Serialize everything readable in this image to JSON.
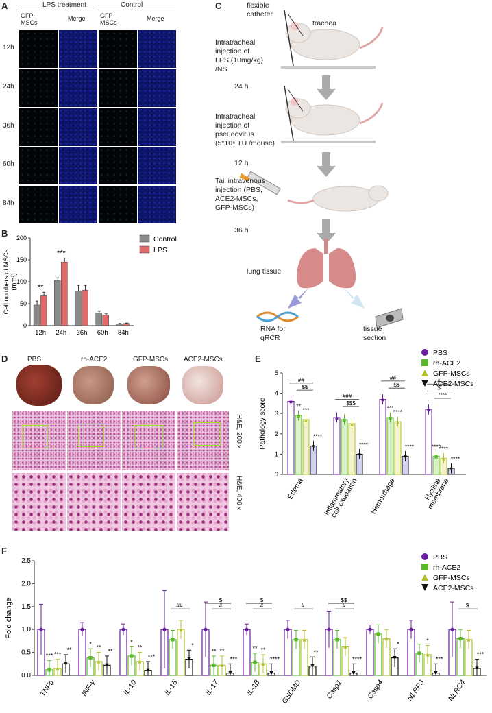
{
  "panels": {
    "A": "A",
    "B": "B",
    "C": "C",
    "D": "D",
    "E": "E",
    "F": "F"
  },
  "panelA": {
    "group_lps": "LPS treatment",
    "group_control": "Control",
    "col_gfp": "GFP-",
    "col_gfp2": "MSCs",
    "col_merge": "Merge",
    "rows": [
      "12h",
      "24h",
      "36h",
      "60h",
      "84h"
    ]
  },
  "panelB": {
    "chart_data": {
      "type": "bar",
      "categories": [
        "12h",
        "24h",
        "36h",
        "60h",
        "84h"
      ],
      "series": [
        {
          "name": "Control",
          "values": [
            47,
            103,
            79,
            29,
            4
          ],
          "errors": [
            9,
            6,
            13,
            4,
            1
          ],
          "color": "#8a8a8a"
        },
        {
          "name": "LPS",
          "values": [
            68,
            145,
            81,
            24,
            5
          ],
          "errors": [
            8,
            9,
            11,
            3,
            1
          ],
          "color": "#e06a6a"
        }
      ],
      "ylabel_line1": "Cell numbers of MSCs",
      "ylabel_line2": "(mm²)",
      "ylim": [
        0,
        200
      ],
      "yticks": [
        "0",
        "50",
        "100",
        "150",
        "200"
      ],
      "annotations": [
        {
          "category": "12h",
          "text": "**"
        },
        {
          "category": "24h",
          "text": "***"
        }
      ]
    }
  },
  "panelC": {
    "label_catheter1": "flexible",
    "label_catheter2": "catheter",
    "label_trachea": "trachea",
    "step1": [
      "Intratracheal",
      "injection of",
      "LPS (10mg/kg)",
      "/NS"
    ],
    "t1": "24 h",
    "step2": [
      "Intratracheal",
      "injection of",
      "pseudovirus",
      "(5*10⁵ TU /mouse)"
    ],
    "t2": "12 h",
    "step3": [
      "Tail intravenous",
      "injection (PBS,",
      "ACE2-MSCs,",
      "GFP-MSCs)"
    ],
    "t3": "36 h",
    "lung": "lung tissue",
    "rna1": "RNA for",
    "rna2": "qRCR",
    "tissue1": "tissue",
    "tissue2": "section"
  },
  "panelD": {
    "groups": [
      "PBS",
      "rh-ACE2",
      "GFP-MSCs",
      "ACE2-MSCs"
    ],
    "he200": "H&E, 200×",
    "he400": "H&E, 400×"
  },
  "legend": {
    "items": [
      {
        "name": "PBS",
        "color": "#6a1fa0",
        "shape": "circle"
      },
      {
        "name": "rh-ACE2",
        "color": "#5ab82a",
        "shape": "square"
      },
      {
        "name": "GFP-MSCs",
        "color": "#b4c02a",
        "shape": "triangle"
      },
      {
        "name": "ACE2-MSCs",
        "color": "#111111",
        "shape": "triangle-down"
      }
    ]
  },
  "panelE": {
    "chart_data": {
      "type": "bar",
      "categories": [
        "Edema",
        "Inflammatory cell exudation",
        "Hemorrhage",
        "Hyaline membrane"
      ],
      "category_lines": [
        [
          "Edema"
        ],
        [
          "Inflammatory",
          "cell exudation"
        ],
        [
          "Hemorrhage"
        ],
        [
          "Hyaline",
          "membrane"
        ]
      ],
      "series": [
        {
          "name": "PBS",
          "values": [
            3.6,
            2.8,
            3.7,
            3.2
          ]
        },
        {
          "name": "rh-ACE2",
          "values": [
            2.9,
            2.7,
            2.8,
            0.9
          ]
        },
        {
          "name": "GFP-MSCs",
          "values": [
            2.7,
            2.5,
            2.6,
            0.8
          ]
        },
        {
          "name": "ACE2-MSCs",
          "values": [
            1.4,
            1.0,
            0.9,
            0.3
          ]
        }
      ],
      "ylabel": "Pathology score",
      "ylim": [
        0,
        5
      ],
      "yticks": [
        "0",
        "1",
        "2",
        "3",
        "4",
        "5"
      ],
      "stars": [
        [
          "",
          "**",
          "***",
          "****"
        ],
        [
          "",
          "",
          "",
          "****"
        ],
        [
          "",
          "***",
          "****",
          "****"
        ],
        [
          "",
          "****",
          "****",
          "****"
        ]
      ],
      "brackets": [
        [
          "##",
          "$$"
        ],
        [
          "###",
          "$$$"
        ],
        [
          "##",
          "$$"
        ],
        [
          "#",
          "$",
          "****"
        ]
      ]
    }
  },
  "panelF": {
    "chart_data": {
      "type": "bar",
      "categories": [
        "TNFα",
        "INF-γ",
        "IL-10",
        "IL-15",
        "IL-17",
        "IL-1β",
        "GSDMD",
        "Casp1",
        "Casp4",
        "NLRP3",
        "NLRC4"
      ],
      "italic": [
        false,
        false,
        false,
        false,
        false,
        false,
        false,
        true,
        true,
        false,
        false
      ],
      "series": [
        {
          "name": "PBS",
          "values": [
            1.0,
            1.0,
            1.0,
            1.0,
            1.0,
            1.0,
            1.0,
            1.0,
            1.0,
            1.0,
            1.0
          ],
          "errors": [
            0.55,
            0.15,
            0.12,
            0.85,
            0.6,
            0.12,
            0.2,
            0.4,
            0.1,
            0.2,
            0.6
          ]
        },
        {
          "name": "rh-ACE2",
          "values": [
            0.12,
            0.38,
            0.42,
            0.78,
            0.22,
            0.28,
            0.78,
            0.78,
            0.9,
            0.48,
            0.8
          ]
        },
        {
          "name": "GFP-MSCs",
          "values": [
            0.15,
            0.3,
            0.3,
            1.0,
            0.22,
            0.25,
            0.78,
            0.62,
            0.8,
            0.45,
            0.78
          ]
        },
        {
          "name": "ACE2-MSCs",
          "values": [
            0.25,
            0.22,
            0.1,
            0.35,
            0.05,
            0.05,
            0.2,
            0.05,
            0.38,
            0.05,
            0.15
          ]
        }
      ],
      "ylabel": "Fold change",
      "ylim": [
        0,
        2.5
      ],
      "yticks": [
        "0.0",
        "0.5",
        "1.0",
        "1.5",
        "2.0",
        "2.5"
      ],
      "stars": [
        [
          "***",
          "***",
          "**"
        ],
        [
          "*",
          "**",
          "**"
        ],
        [
          "*",
          "**",
          "***"
        ],
        [
          "",
          "",
          "*"
        ],
        [
          "**",
          "**",
          "***"
        ],
        [
          "**",
          "**",
          "****"
        ],
        [
          "",
          "",
          "**"
        ],
        [
          "",
          "",
          "****"
        ],
        [
          "",
          "",
          "*"
        ],
        [
          "",
          "*",
          "***"
        ],
        [
          "",
          "",
          "***"
        ]
      ],
      "brackets": {
        "IL-15": [
          "##"
        ],
        "IL-17": [
          "#",
          "$"
        ],
        "IL-1β": [
          "#",
          "$"
        ],
        "GSDMD": [
          "#"
        ],
        "Casp1": [
          "#",
          "$$"
        ],
        "NLRC4": [
          "$"
        ]
      }
    }
  }
}
